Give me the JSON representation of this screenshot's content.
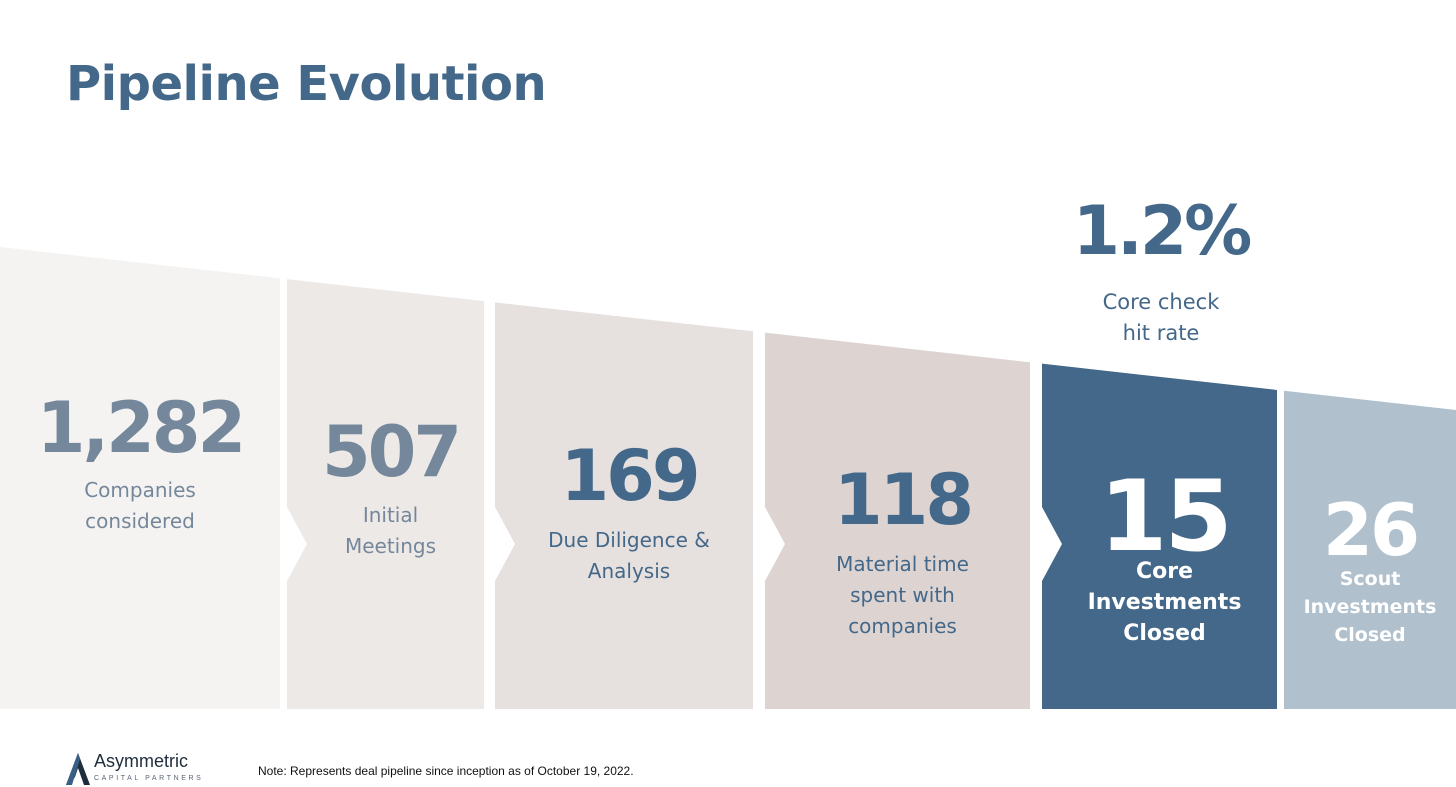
{
  "slide": {
    "title": "Pipeline Evolution"
  },
  "chart_data": {
    "type": "bar",
    "categories": [
      "Companies considered",
      "Initial Meetings",
      "Due Diligence & Analysis",
      "Material time spent with companies",
      "Core Investments Closed",
      "Scout Investments Closed"
    ],
    "values": [
      1282,
      507,
      169,
      118,
      15,
      26
    ],
    "value_labels": [
      "1,282",
      "507",
      "169",
      "118",
      "15",
      "26"
    ],
    "label_lines": [
      [
        "Companies",
        "considered"
      ],
      [
        "Initial",
        "Meetings"
      ],
      [
        "Due Diligence &",
        "Analysis"
      ],
      [
        "Material time",
        "spent with",
        "companies"
      ],
      [
        "Core",
        "Investments",
        "Closed"
      ],
      [
        "Scout",
        "Investments",
        "Closed"
      ]
    ],
    "colors": [
      "#f4f3f2",
      "#ede9e7",
      "#e6e0de",
      "#ddd4d2",
      "#446889",
      "#b0c0cd"
    ],
    "text_colors": [
      "#75879a",
      "#75879a",
      "#446889",
      "#446889",
      "#ffffff",
      "#ffffff"
    ]
  },
  "callout": {
    "value": "1.2%",
    "label_lines": [
      "Core check",
      "hit rate"
    ]
  },
  "footer": {
    "brand": "Asymmetric",
    "tagline": "CAPITAL PARTNERS",
    "note": "Note: Represents deal pipeline since inception as of October 19, 2022."
  }
}
